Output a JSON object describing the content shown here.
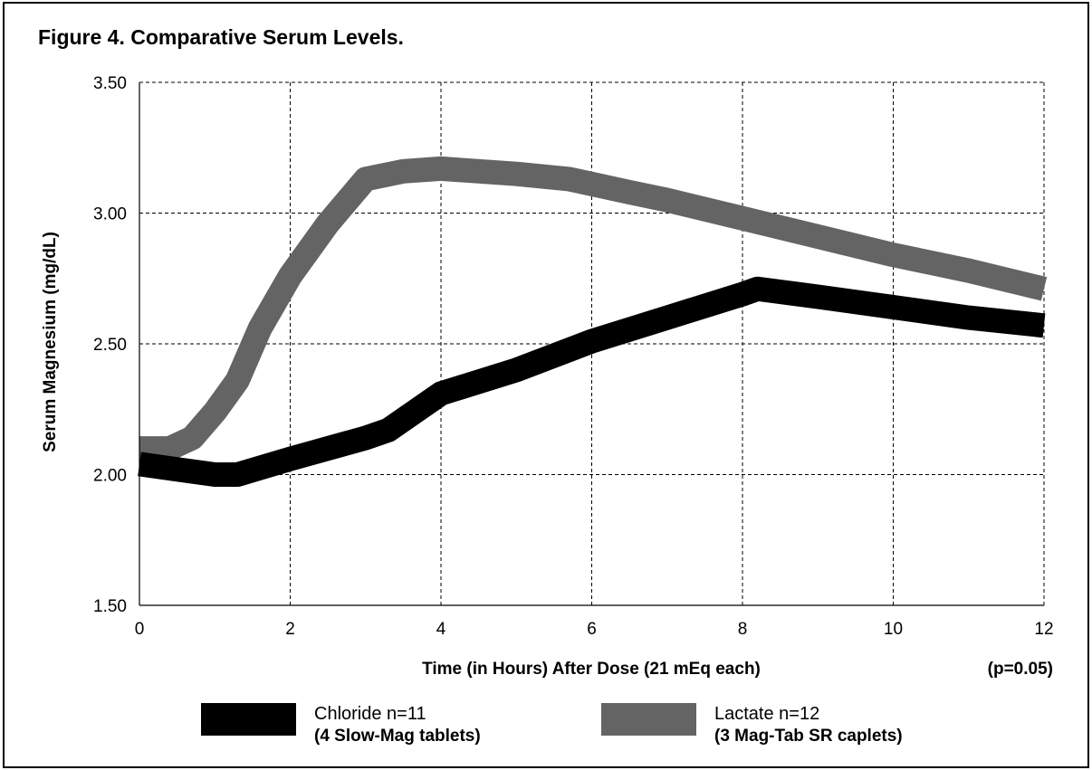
{
  "chart_data": {
    "type": "line",
    "title": "Figure 4. Comparative Serum Levels.",
    "xlabel": "Time (in Hours) After Dose (21 mEq each)",
    "ylabel": "Serum Magnesium (mg/dL)",
    "annotation": "(p=0.05)",
    "xlim": [
      0,
      12
    ],
    "ylim": [
      1.5,
      3.5
    ],
    "x_ticks": [
      "0",
      "2",
      "4",
      "6",
      "8",
      "10",
      "12"
    ],
    "y_ticks": [
      "1.50",
      "2.00",
      "2.50",
      "3.00",
      "3.50"
    ],
    "grid": true,
    "series": [
      {
        "name": "Chloride n=11",
        "detail": "(4 Slow-Mag tablets)",
        "color": "#000000",
        "x": [
          0,
          0.5,
          1.0,
          1.3,
          2.0,
          3.0,
          3.3,
          4.0,
          5.0,
          6.0,
          7.0,
          8.0,
          8.2,
          9.0,
          10.0,
          11.0,
          12.0
        ],
        "y": [
          2.04,
          2.02,
          2.0,
          2.0,
          2.06,
          2.14,
          2.17,
          2.31,
          2.4,
          2.51,
          2.6,
          2.69,
          2.71,
          2.68,
          2.64,
          2.6,
          2.57
        ]
      },
      {
        "name": "Lactate n=12",
        "detail": "(3 Mag-Tab SR caplets)",
        "color": "#646464",
        "x": [
          0,
          0.4,
          0.7,
          1.0,
          1.3,
          1.6,
          2.0,
          2.5,
          3.0,
          3.5,
          4.0,
          5.0,
          5.7,
          6.5,
          7.0,
          8.0,
          9.0,
          10.0,
          11.0,
          12.0
        ],
        "y": [
          2.1,
          2.1,
          2.14,
          2.24,
          2.36,
          2.56,
          2.76,
          2.96,
          3.13,
          3.16,
          3.17,
          3.15,
          3.13,
          3.08,
          3.05,
          2.98,
          2.91,
          2.84,
          2.78,
          2.71
        ]
      }
    ],
    "legend_position": "bottom"
  }
}
